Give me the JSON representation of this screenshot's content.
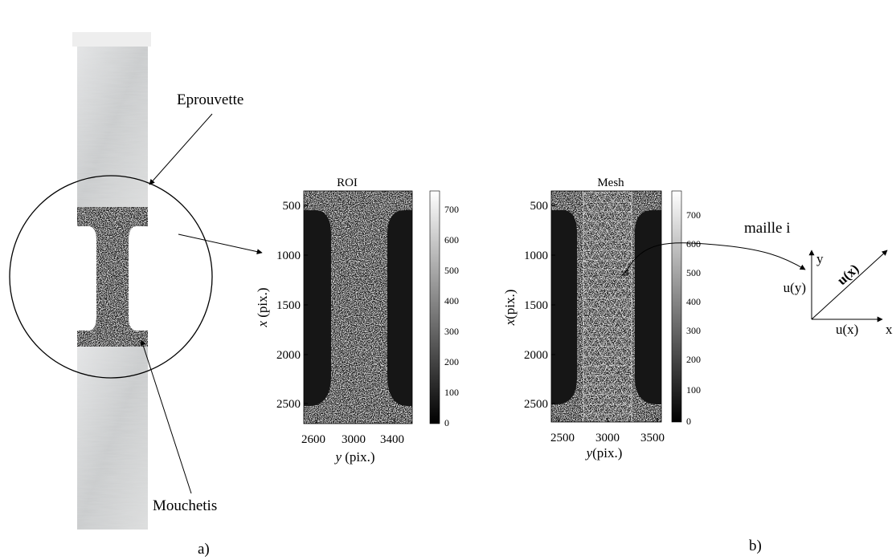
{
  "labels": {
    "eprouvette": "Eprouvette",
    "mouchetis": "Mouchetis",
    "panel_a": "a)",
    "panel_b": "b)",
    "maille": "maille i"
  },
  "roi_plot": {
    "title": "ROI",
    "x_var": "y",
    "x_unit": " (pix.)",
    "y_var": "x",
    "y_unit": " (pix.)",
    "y_ticks": [
      "500",
      "1000",
      "1500",
      "2000",
      "2500"
    ],
    "x_ticks": [
      "2600",
      "3000",
      "3400"
    ],
    "colorbar_ticks": [
      "700",
      "600",
      "500",
      "400",
      "300",
      "200",
      "100",
      "0"
    ]
  },
  "mesh_plot": {
    "title": "Mesh",
    "x_var": "y",
    "x_unit": "(pix.)",
    "y_var": "x",
    "y_unit": "(pix.)",
    "y_ticks": [
      "500",
      "1000",
      "1500",
      "2000",
      "2500"
    ],
    "x_ticks": [
      "2500",
      "3000",
      "3500"
    ],
    "colorbar_ticks": [
      "700",
      "600",
      "500",
      "400",
      "300",
      "200",
      "100",
      "0"
    ]
  },
  "vector_diagram": {
    "axis_y": "y",
    "axis_x": "x",
    "uy": "u(y)",
    "ux": "u(x)",
    "vector": "u(x)"
  },
  "colors": {
    "metal": "#cfd1d2",
    "speckle_dark": "#161616",
    "speckle_light": "#dcdcdc",
    "mask": "#1a1a1a"
  }
}
